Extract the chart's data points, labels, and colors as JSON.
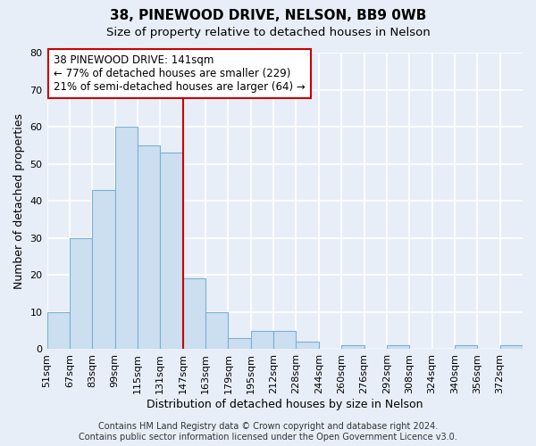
{
  "title": "38, PINEWOOD DRIVE, NELSON, BB9 0WB",
  "subtitle": "Size of property relative to detached houses in Nelson",
  "xlabel": "Distribution of detached houses by size in Nelson",
  "ylabel": "Number of detached properties",
  "bin_labels": [
    "51sqm",
    "67sqm",
    "83sqm",
    "99sqm",
    "115sqm",
    "131sqm",
    "147sqm",
    "163sqm",
    "179sqm",
    "195sqm",
    "212sqm",
    "228sqm",
    "244sqm",
    "260sqm",
    "276sqm",
    "292sqm",
    "308sqm",
    "324sqm",
    "340sqm",
    "356sqm",
    "372sqm"
  ],
  "bar_heights": [
    10,
    30,
    43,
    60,
    55,
    53,
    19,
    10,
    3,
    5,
    5,
    2,
    0,
    1,
    0,
    1,
    0,
    0,
    1,
    0,
    1
  ],
  "bar_color": "#ccdff0",
  "bar_edge_color": "#7ab0d4",
  "vline_x_index": 6,
  "vline_color": "#cc0000",
  "annotation_line1": "38 PINEWOOD DRIVE: 141sqm",
  "annotation_line2": "← 77% of detached houses are smaller (229)",
  "annotation_line3": "21% of semi-detached houses are larger (64) →",
  "annotation_box_edge_color": "#cc0000",
  "annotation_box_face_color": "#ffffff",
  "ylim": [
    0,
    80
  ],
  "yticks": [
    0,
    10,
    20,
    30,
    40,
    50,
    60,
    70,
    80
  ],
  "footer_text": "Contains HM Land Registry data © Crown copyright and database right 2024.\nContains public sector information licensed under the Open Government Licence v3.0.",
  "background_color": "#e8eef8",
  "plot_bg_color": "#e8eef8",
  "grid_color": "#ffffff",
  "title_fontsize": 11,
  "subtitle_fontsize": 9.5,
  "label_fontsize": 9,
  "tick_fontsize": 8,
  "annotation_fontsize": 8.5,
  "footer_fontsize": 7
}
